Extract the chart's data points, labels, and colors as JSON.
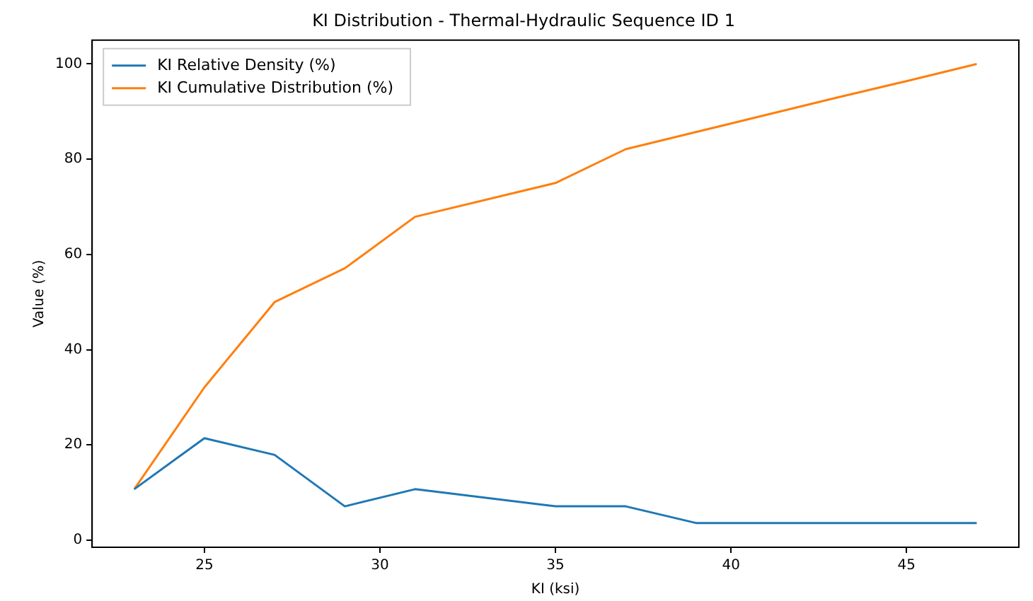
{
  "chart_data": {
    "type": "line",
    "title": "KI Distribution - Thermal-Hydraulic Sequence ID 1",
    "xlabel": "KI (ksi)",
    "ylabel": "Value (%)",
    "x": [
      23,
      25,
      27,
      29,
      31,
      35,
      37,
      39,
      41,
      43,
      45,
      47
    ],
    "series": [
      {
        "name": "KI Relative Density (%)",
        "color": "#1f77b4",
        "values": [
          10.7,
          21.4,
          17.9,
          7.1,
          10.7,
          7.1,
          7.1,
          3.6,
          3.6,
          3.6,
          3.6,
          3.6
        ]
      },
      {
        "name": "KI Cumulative Distribution (%)",
        "color": "#ff7f0e",
        "values": [
          10.7,
          32.1,
          50,
          57.1,
          67.9,
          75,
          82.1,
          85.7,
          89.3,
          92.9,
          96.4,
          100
        ]
      }
    ],
    "xlim": [
      21.8,
      48.2
    ],
    "xticks": [
      25,
      30,
      35,
      40,
      45
    ],
    "ylim": [
      -1.5,
      105
    ],
    "yticks": [
      0,
      20,
      40,
      60,
      80,
      100
    ],
    "grid": false,
    "legend": "top left",
    "marker": "none",
    "line_style": "solid"
  }
}
